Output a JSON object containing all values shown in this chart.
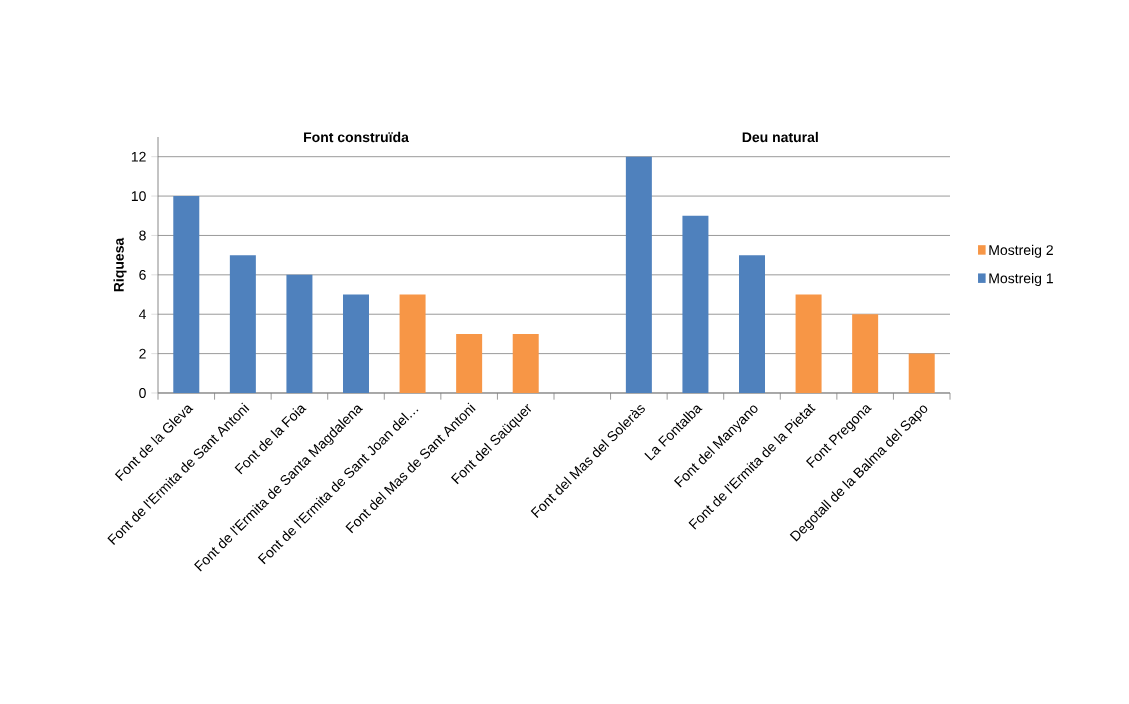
{
  "chart_data": {
    "type": "bar",
    "ylabel": "Riquesa",
    "annotations": [
      "Font construïda",
      "Deu natural"
    ],
    "categories": [
      "Font de la Gleva",
      "Font de l'Ermita de Sant Antoni",
      "Font de la Foia",
      "Font de l'Ermita de Santa Magdalena",
      "Font de l'Ermita de Sant Joan del…",
      "Font del Mas de Sant Antoni",
      "Font del Saüquer",
      null,
      "Font del Mas del Soleràs",
      "La Fontalba",
      "Font del Manyano",
      "Font de l'Ermita de la Pietat",
      "Font Pregona",
      "Degotall de la Balma del Sapo"
    ],
    "series": [
      {
        "name": "Mostreig 1",
        "color": "#4f81bd",
        "values": [
          10,
          7,
          6,
          5,
          null,
          null,
          null,
          null,
          12,
          9,
          7,
          null,
          null,
          null
        ]
      },
      {
        "name": "Mostreig 2",
        "color": "#f79646",
        "values": [
          null,
          null,
          null,
          null,
          5,
          3,
          3,
          null,
          null,
          null,
          null,
          5,
          4,
          2
        ]
      }
    ],
    "ylim": [
      0,
      13
    ],
    "yticks": [
      0,
      2,
      4,
      6,
      8,
      10,
      12
    ],
    "grid": "y",
    "legend": "right"
  }
}
